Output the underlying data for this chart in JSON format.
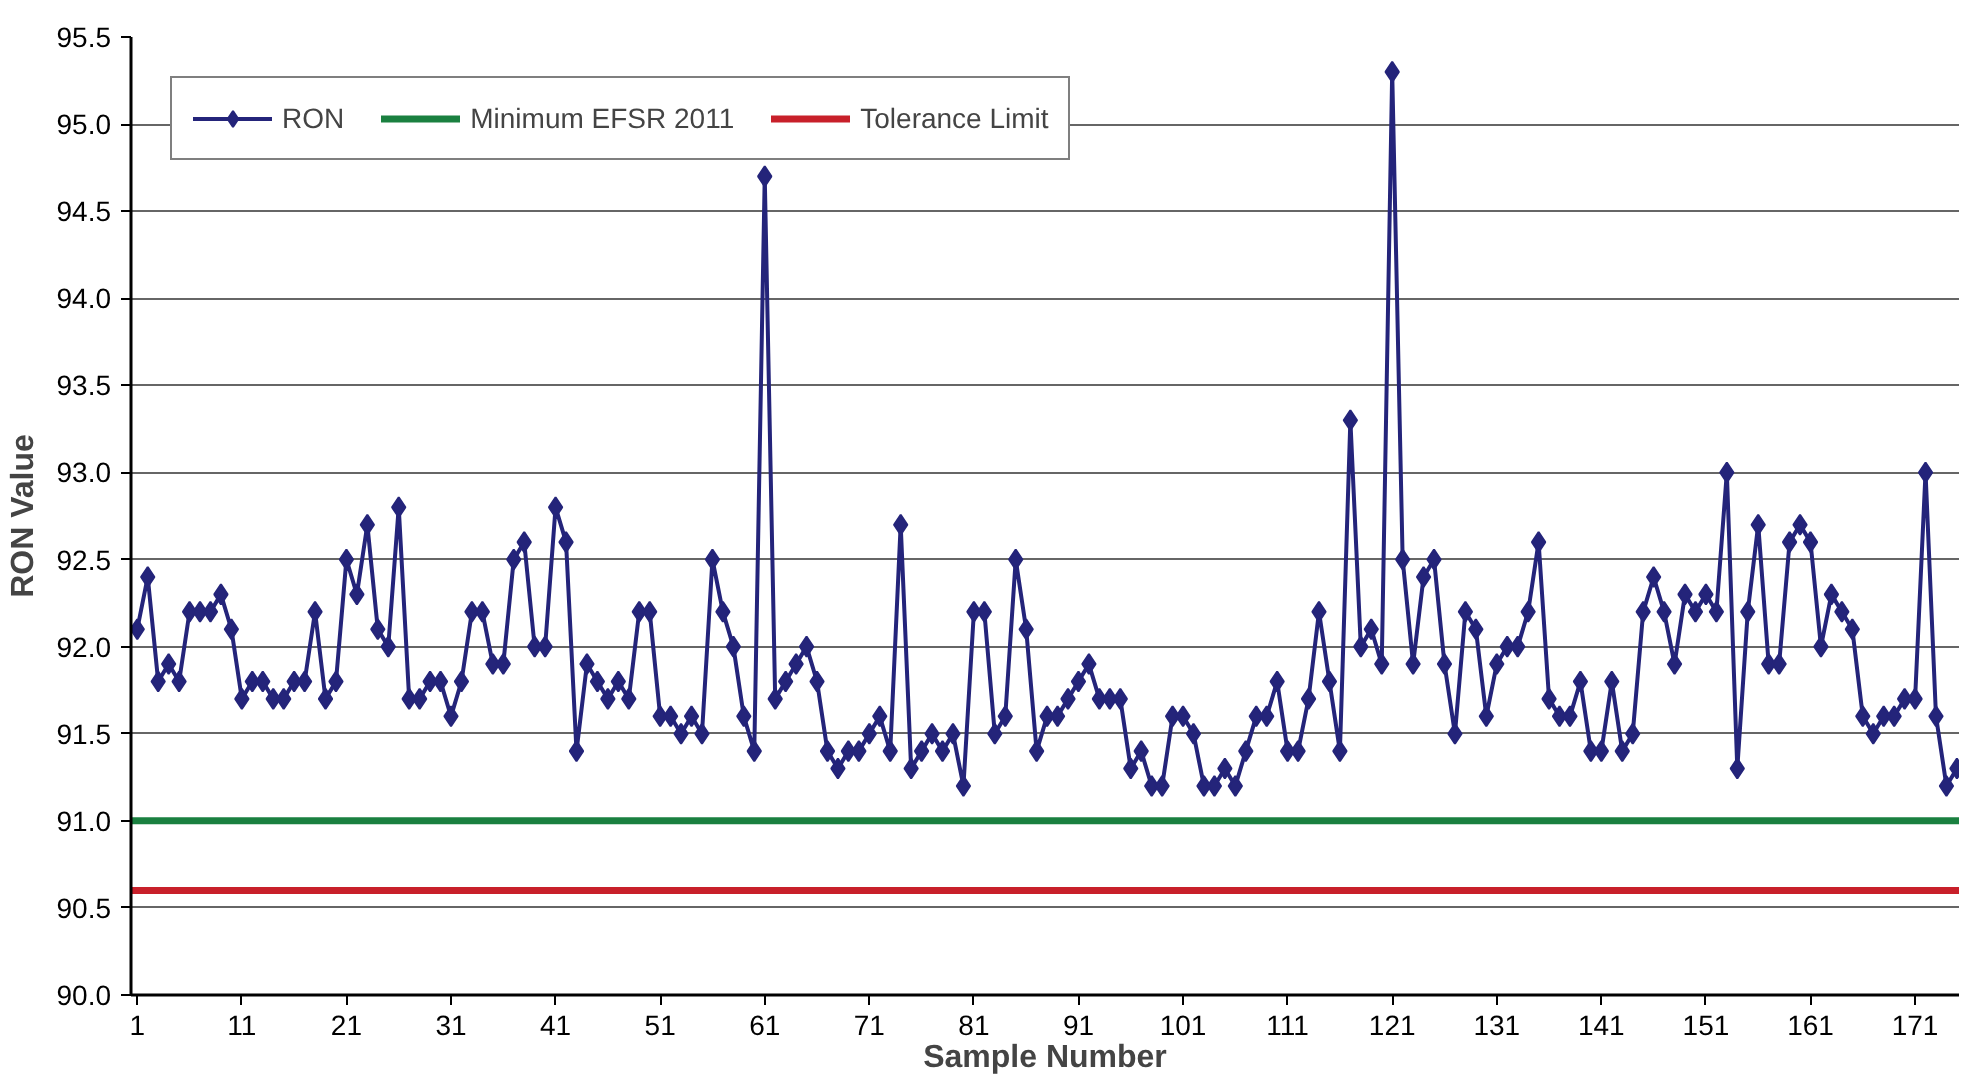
{
  "chart_data": {
    "type": "line",
    "xlabel": "Sample Number",
    "ylabel": "RON Value",
    "x": [
      1,
      2,
      3,
      4,
      5,
      6,
      7,
      8,
      9,
      10,
      11,
      12,
      13,
      14,
      15,
      16,
      17,
      18,
      19,
      20,
      21,
      22,
      23,
      24,
      25,
      26,
      27,
      28,
      29,
      30,
      31,
      32,
      33,
      34,
      35,
      36,
      37,
      38,
      39,
      40,
      41,
      42,
      43,
      44,
      45,
      46,
      47,
      48,
      49,
      50,
      51,
      52,
      53,
      54,
      55,
      56,
      57,
      58,
      59,
      60,
      61,
      62,
      63,
      64,
      65,
      66,
      67,
      68,
      69,
      70,
      71,
      72,
      73,
      74,
      75,
      76,
      77,
      78,
      79,
      80,
      81,
      82,
      83,
      84,
      85,
      86,
      87,
      88,
      89,
      90,
      91,
      92,
      93,
      94,
      95,
      96,
      97,
      98,
      99,
      100,
      101,
      102,
      103,
      104,
      105,
      106,
      107,
      108,
      109,
      110,
      111,
      112,
      113,
      114,
      115,
      116,
      117,
      118,
      119,
      120,
      121,
      122,
      123,
      124,
      125,
      126,
      127,
      128,
      129,
      130,
      131,
      132,
      133,
      134,
      135,
      136,
      137,
      138,
      139,
      140,
      141,
      142,
      143,
      144,
      145,
      146,
      147,
      148,
      149,
      150,
      151,
      152,
      153,
      154,
      155,
      156,
      157,
      158,
      159,
      160,
      161,
      162,
      163,
      164,
      165,
      166,
      167,
      168,
      169,
      170,
      171,
      172,
      173,
      174,
      175
    ],
    "series": [
      {
        "name": "RON",
        "color": "#24247a",
        "values": [
          92.1,
          92.4,
          91.8,
          91.9,
          91.8,
          92.2,
          92.2,
          92.2,
          92.3,
          92.1,
          91.7,
          91.8,
          91.8,
          91.7,
          91.7,
          91.8,
          91.8,
          92.2,
          91.7,
          91.8,
          92.5,
          92.3,
          92.7,
          92.1,
          92.0,
          92.8,
          91.7,
          91.7,
          91.8,
          91.8,
          91.6,
          91.8,
          92.2,
          92.2,
          91.9,
          91.9,
          92.5,
          92.6,
          92.0,
          92.0,
          92.8,
          92.6,
          91.4,
          91.9,
          91.8,
          91.7,
          91.8,
          91.7,
          92.2,
          92.2,
          91.6,
          91.6,
          91.5,
          91.6,
          91.5,
          92.5,
          92.2,
          92.0,
          91.6,
          91.4,
          94.7,
          91.7,
          91.8,
          91.9,
          92.0,
          91.8,
          91.4,
          91.3,
          91.4,
          91.4,
          91.5,
          91.6,
          91.4,
          92.7,
          91.3,
          91.4,
          91.5,
          91.4,
          91.5,
          91.2,
          92.2,
          92.2,
          91.5,
          91.6,
          92.5,
          92.1,
          91.4,
          91.6,
          91.6,
          91.7,
          91.8,
          91.9,
          91.7,
          91.7,
          91.7,
          91.3,
          91.4,
          91.2,
          91.2,
          91.6,
          91.6,
          91.5,
          91.2,
          91.2,
          91.3,
          91.2,
          91.4,
          91.6,
          91.6,
          91.8,
          91.4,
          91.4,
          91.7,
          92.2,
          91.8,
          91.4,
          93.3,
          92.0,
          92.1,
          91.9,
          95.3,
          92.5,
          91.9,
          92.4,
          92.5,
          91.9,
          91.5,
          92.2,
          92.1,
          91.6,
          91.9,
          92.0,
          92.0,
          92.2,
          92.6,
          91.7,
          91.6,
          91.6,
          91.8,
          91.4,
          91.4,
          91.8,
          91.4,
          91.5,
          92.2,
          92.4,
          92.2,
          91.9,
          92.3,
          92.2,
          92.3,
          92.2,
          93.0,
          91.3,
          92.2,
          92.7,
          91.9,
          91.9,
          92.6,
          92.7,
          92.6,
          92.0,
          92.3,
          92.2,
          92.1,
          91.6,
          91.5,
          91.6,
          91.6,
          91.7,
          91.7,
          93.0,
          91.6,
          91.2,
          91.3
        ]
      }
    ],
    "ref_lines": [
      {
        "axis": "y",
        "value": 91.0,
        "label": "Minimum EFSR 2011",
        "color": "#1a8040",
        "line_style": "solid"
      },
      {
        "axis": "y",
        "value": 90.6,
        "label": "Tolerance Limit",
        "color": "#c8202a",
        "line_style": "solid"
      }
    ],
    "xlim": [
      0.4,
      175.2
    ],
    "ylim": [
      90.0,
      95.5
    ],
    "xticks": [
      1,
      11,
      21,
      31,
      41,
      51,
      61,
      71,
      81,
      91,
      101,
      111,
      121,
      131,
      141,
      151,
      161,
      171
    ],
    "yticks": [
      {
        "value": 90.0,
        "label": "90.0"
      },
      {
        "value": 90.5,
        "label": "90.5"
      },
      {
        "value": 91.0,
        "label": "91.0"
      },
      {
        "value": 91.5,
        "label": "91.5"
      },
      {
        "value": 92.0,
        "label": "92.0"
      },
      {
        "value": 92.5,
        "label": "92.5"
      },
      {
        "value": 93.0,
        "label": "93.0"
      },
      {
        "value": 93.5,
        "label": "93.5"
      },
      {
        "value": 94.0,
        "label": "94.0"
      },
      {
        "value": 94.5,
        "label": "94.5"
      },
      {
        "value": 95.0,
        "label": "95.0"
      },
      {
        "value": 95.5,
        "label": "95.5"
      }
    ],
    "grid": "y",
    "legend": "top left",
    "marker": "diamond",
    "line_style": "solid"
  }
}
